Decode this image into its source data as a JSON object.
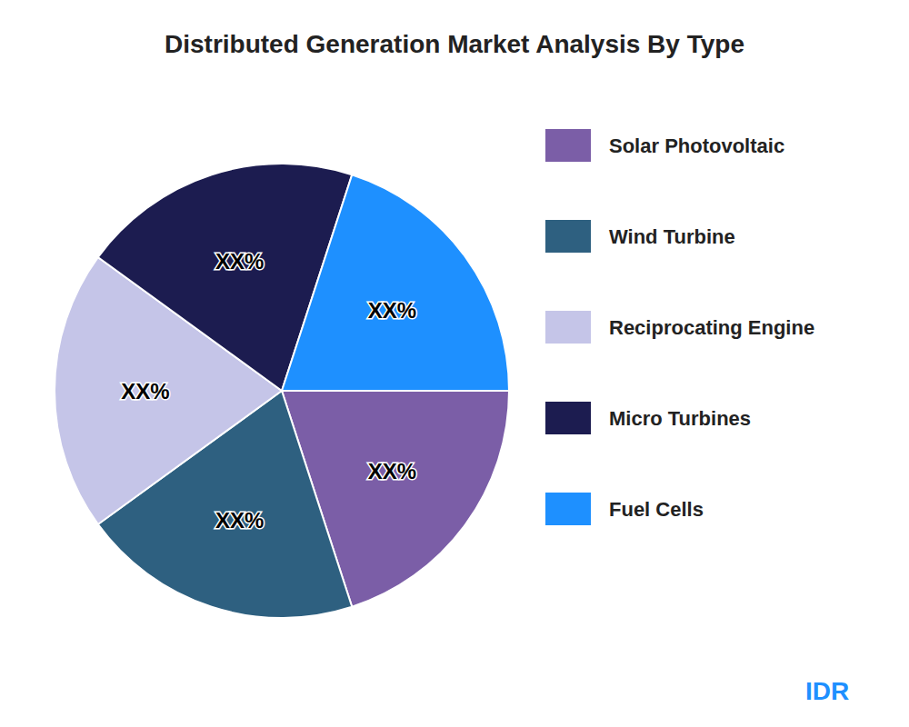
{
  "chart_data": {
    "type": "pie",
    "title": "Distributed Generation Market Analysis By Type",
    "categories": [
      "Solar Photovoltaic",
      "Wind Turbine",
      "Reciprocating Engine",
      "Micro Turbines",
      "Fuel Cells"
    ],
    "values": [
      20,
      20,
      20,
      20,
      20
    ],
    "value_labels": [
      "XX%",
      "XX%",
      "XX%",
      "XX%",
      "XX%"
    ],
    "data_labels": true,
    "colors": [
      "#7B5EA7",
      "#2E6080",
      "#C5C5E8",
      "#1C1C50",
      "#1E90FF"
    ],
    "legend": "right",
    "annotations": [
      {
        "text": "IDR",
        "color": "#1E90FF"
      }
    ]
  }
}
